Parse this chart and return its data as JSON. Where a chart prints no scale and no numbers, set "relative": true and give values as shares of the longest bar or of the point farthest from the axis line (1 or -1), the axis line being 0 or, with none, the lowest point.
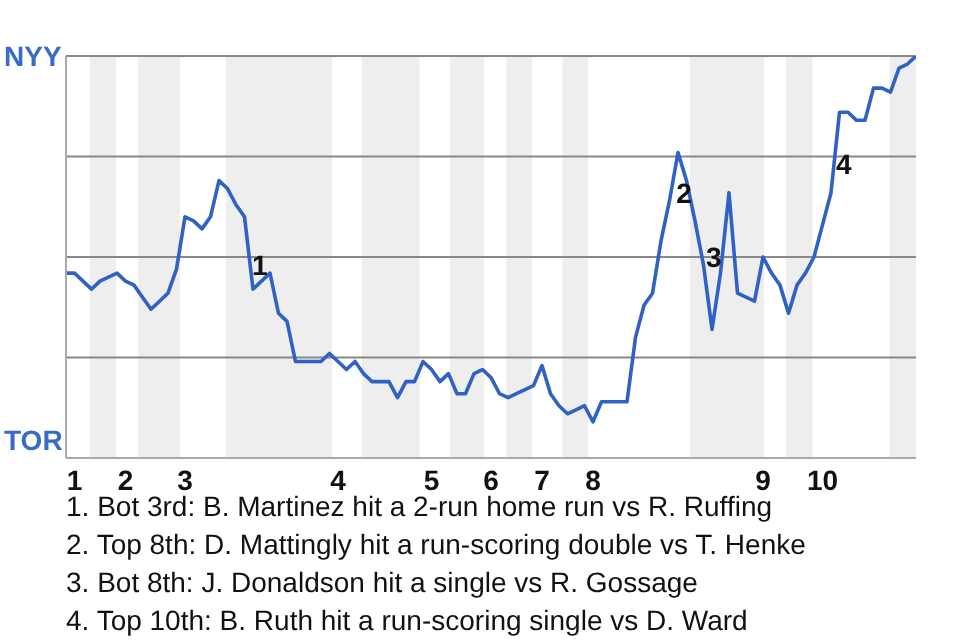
{
  "chart_data": {
    "type": "line",
    "color": "#2f62c4",
    "line_style": "solid",
    "marker": "none",
    "grid": "y",
    "legend": false,
    "relative": true,
    "categories": [
      null,
      "1",
      null,
      null,
      null,
      null,
      null,
      "2",
      null,
      null,
      null,
      null,
      null,
      null,
      "3",
      null,
      null,
      null,
      null,
      null,
      null,
      null,
      null,
      null,
      null,
      null,
      null,
      null,
      null,
      null,
      null,
      null,
      "4",
      null,
      null,
      null,
      null,
      null,
      null,
      null,
      null,
      null,
      null,
      "5",
      null,
      null,
      null,
      null,
      null,
      null,
      "6",
      null,
      null,
      null,
      null,
      null,
      "7",
      null,
      null,
      null,
      null,
      null,
      "8",
      null,
      null,
      null,
      null,
      null,
      null,
      null,
      null,
      null,
      null,
      null,
      null,
      null,
      null,
      null,
      null,
      null,
      null,
      null,
      "9",
      null,
      null,
      null,
      null,
      null,
      null,
      "10",
      null,
      null,
      null,
      null,
      null,
      null,
      null,
      null,
      null,
      null,
      null
    ],
    "values": [
      0.46,
      0.46,
      0.44,
      0.42,
      0.44,
      0.45,
      0.46,
      0.44,
      0.43,
      0.4,
      0.37,
      0.39,
      0.41,
      0.47,
      0.6,
      0.59,
      0.57,
      0.6,
      0.69,
      0.67,
      0.63,
      0.6,
      0.42,
      0.44,
      0.46,
      0.36,
      0.34,
      0.24,
      0.24,
      0.24,
      0.24,
      0.26,
      0.24,
      0.22,
      0.24,
      0.21,
      0.19,
      0.19,
      0.19,
      0.15,
      0.19,
      0.19,
      0.24,
      0.22,
      0.19,
      0.21,
      0.16,
      0.16,
      0.21,
      0.22,
      0.2,
      0.16,
      0.15,
      0.16,
      0.17,
      0.18,
      0.23,
      0.16,
      0.13,
      0.11,
      0.12,
      0.13,
      0.09,
      0.14,
      0.14,
      0.14,
      0.14,
      0.3,
      0.38,
      0.41,
      0.54,
      0.64,
      0.76,
      0.69,
      0.59,
      0.48,
      0.32,
      0.46,
      0.66,
      0.41,
      0.4,
      0.39,
      0.5,
      0.46,
      0.43,
      0.36,
      0.43,
      0.46,
      0.5,
      0.58,
      0.66,
      0.86,
      0.86,
      0.84,
      0.84,
      0.92,
      0.92,
      0.91,
      0.97,
      0.98,
      1.0
    ],
    "annotations": [
      "NYY",
      "TOR",
      "1",
      "2",
      "3",
      "4",
      "1. Bot 3rd: B. Martinez hit a 2-run home run vs R. Ruffing",
      "2. Top 8th: D. Mattingly hit a run-scoring double vs T. Henke",
      "3. Bot 8th: J. Donaldson hit a single vs R. Gossage",
      "4. Top 10th: B. Ruth hit a run-scoring single vs D. Ward"
    ]
  }
}
